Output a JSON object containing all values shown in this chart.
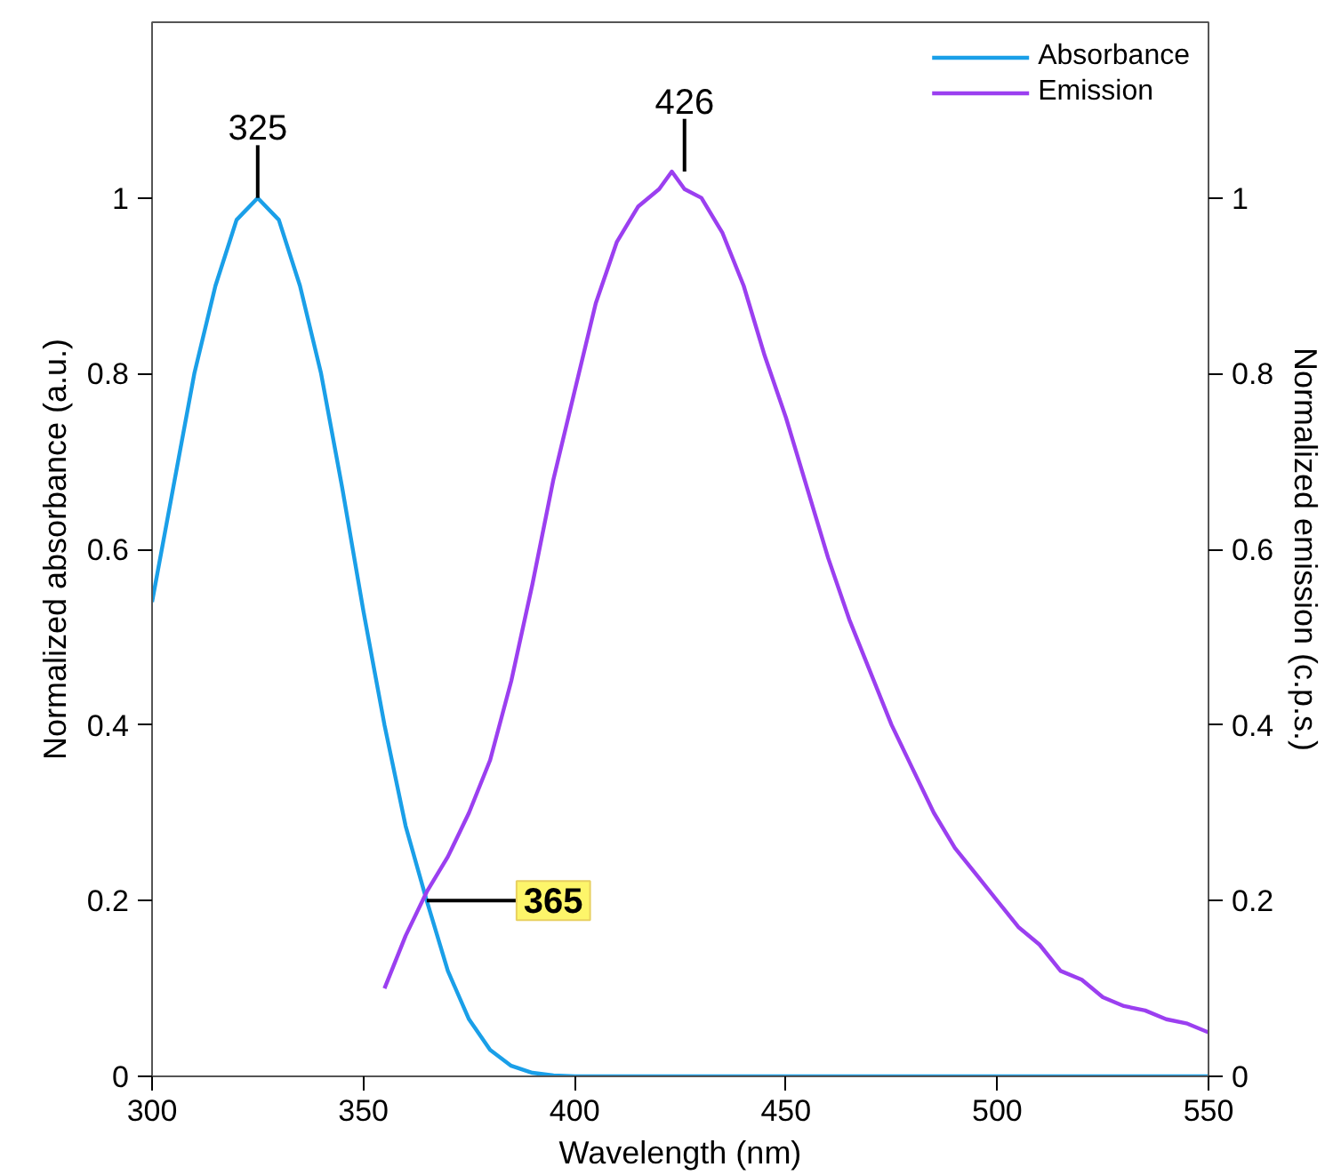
{
  "chart_data": {
    "type": "line",
    "xlabel": "Wavelength (nm)",
    "ylabel": "Normalized absorbance (a.u.)",
    "y2label": "Normalized emission (c.p.s.)",
    "xlim": [
      300,
      550
    ],
    "xticks": [
      300,
      350,
      400,
      450,
      500,
      550
    ],
    "ylim": [
      0,
      1.2
    ],
    "yticks": [
      0,
      0.2,
      0.4,
      0.6,
      0.8,
      1
    ],
    "y2lim": [
      0,
      1.2
    ],
    "y2ticks": [
      0,
      0.2,
      0.4,
      0.6,
      0.8,
      1
    ],
    "legend": "top right",
    "grid": false,
    "marker": "none",
    "line_style": "solid",
    "series": [
      {
        "name": "Absorbance",
        "color": "#1a9fe8",
        "x": [
          300,
          305,
          310,
          315,
          320,
          325,
          330,
          335,
          340,
          345,
          350,
          355,
          360,
          365,
          370,
          375,
          380,
          385,
          390,
          395,
          400,
          450,
          500,
          550
        ],
        "values": [
          0.54,
          0.67,
          0.8,
          0.9,
          0.975,
          1.0,
          0.975,
          0.9,
          0.8,
          0.67,
          0.53,
          0.4,
          0.285,
          0.2,
          0.12,
          0.065,
          0.03,
          0.012,
          0.004,
          0.001,
          0,
          0,
          0,
          0
        ]
      },
      {
        "name": "Emission",
        "color": "#9b3ff0",
        "axis": "y2",
        "x": [
          355,
          360,
          365,
          370,
          375,
          380,
          385,
          390,
          395,
          400,
          405,
          410,
          415,
          420,
          423,
          426,
          430,
          435,
          440,
          445,
          450,
          455,
          460,
          465,
          470,
          475,
          480,
          485,
          490,
          495,
          500,
          505,
          510,
          515,
          520,
          525,
          530,
          535,
          540,
          545,
          550
        ],
        "values": [
          0.1,
          0.16,
          0.21,
          0.25,
          0.3,
          0.36,
          0.45,
          0.56,
          0.68,
          0.78,
          0.88,
          0.95,
          0.99,
          1.01,
          1.03,
          1.01,
          1.0,
          0.96,
          0.9,
          0.82,
          0.75,
          0.67,
          0.59,
          0.52,
          0.46,
          0.4,
          0.35,
          0.3,
          0.26,
          0.23,
          0.2,
          0.17,
          0.15,
          0.12,
          0.11,
          0.09,
          0.08,
          0.075,
          0.065,
          0.06,
          0.05
        ]
      }
    ],
    "annotations": [
      {
        "text": "325",
        "x": 325,
        "y": 1.0
      },
      {
        "text": "426",
        "x": 426,
        "y": 1.03
      },
      {
        "text": "365",
        "x": 365,
        "y": 0.2
      }
    ]
  }
}
